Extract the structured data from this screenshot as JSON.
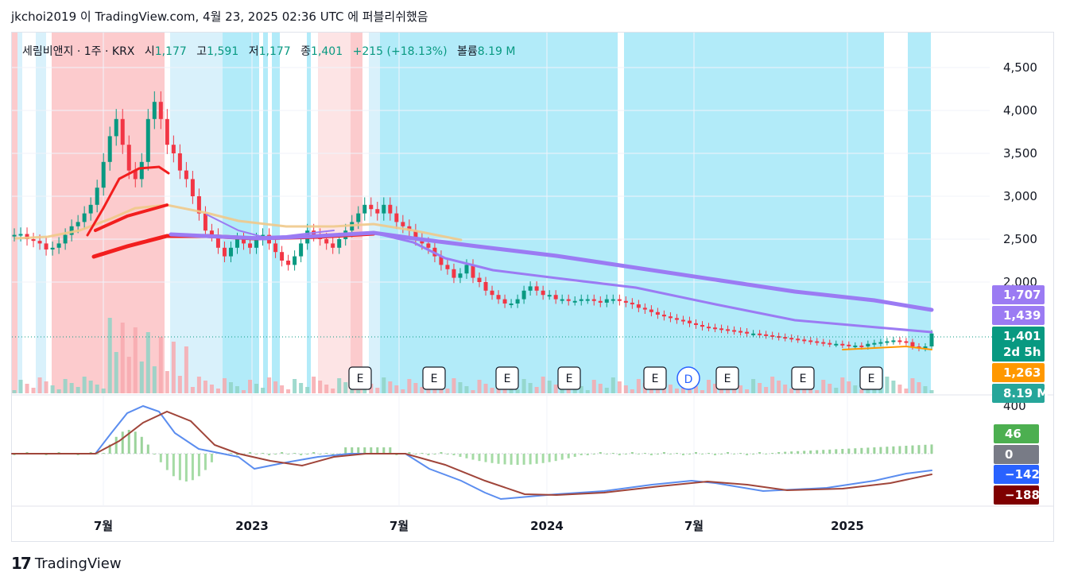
{
  "header": {
    "publish_line": "jkchoi2019 이 TradingView.com, 4월 23, 2025 02:36 UTC 에 퍼블리쉬했음"
  },
  "legend": {
    "symbol": "세림비앤지 · 1주 · KRX",
    "open_label": "시",
    "open": "1,177",
    "high_label": "고",
    "high": "1,591",
    "low_label": "저",
    "low": "1,177",
    "close_label": "종",
    "close": "1,401",
    "change": "+215 (+18.13%)",
    "volume_label": "볼륨",
    "volume": "8.19 M"
  },
  "price_axis": {
    "ticks": [
      "4,500",
      "4,000",
      "3,500",
      "3,000",
      "2,500",
      "2,000"
    ]
  },
  "macd_axis": {
    "ticks": [
      "400"
    ]
  },
  "time_axis": {
    "labels": [
      "7월",
      "2023",
      "7월",
      "2024",
      "7월",
      "2025"
    ]
  },
  "price_labels": [
    {
      "text": "1,707",
      "color": "#9b7bf3"
    },
    {
      "text": "1,439",
      "color": "#9b7bf3"
    },
    {
      "text": "1,401",
      "color": "#089981"
    },
    {
      "text": "2d 5h",
      "color": "#089981"
    },
    {
      "text": "1,263",
      "color": "#ff9800"
    },
    {
      "text": "8.19 M",
      "color": "#26a69a"
    }
  ],
  "macd_labels": [
    {
      "text": "46",
      "color": "#4caf50"
    },
    {
      "text": "0",
      "color": "#787b86"
    },
    {
      "text": "−142",
      "color": "#2962ff"
    },
    {
      "text": "−188",
      "color": "#7f0000"
    }
  ],
  "event_markers": [
    "E",
    "E",
    "E",
    "E",
    "E",
    "D",
    "E",
    "E",
    "E"
  ],
  "footer": {
    "brand": "TradingView",
    "logo": "17"
  },
  "colors": {
    "up": "#089981",
    "down": "#f23645",
    "bg_cyan": "#b2ebf9",
    "bg_red": "#fccbcd",
    "ma_purple": "#9b7bf3",
    "ma_red": "#f21e1e",
    "ma_tan": "#f0c98a",
    "macd_line": "#5b8def",
    "signal_line": "#a0453a"
  }
}
